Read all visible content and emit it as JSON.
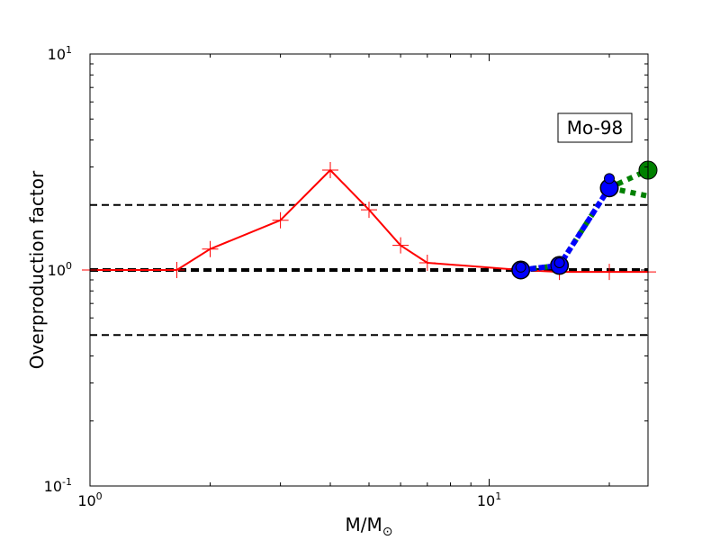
{
  "chart_data": {
    "type": "line",
    "title": "",
    "xlabel": "M/M",
    "xlabel_sub": "⊙",
    "ylabel": "Overproduction factor",
    "xscale": "log",
    "yscale": "log",
    "xlim": [
      1,
      25
    ],
    "ylim": [
      0.1,
      10
    ],
    "x_ticks": [
      {
        "value": 1,
        "base": "10",
        "exp": "0"
      },
      {
        "value": 10,
        "base": "10",
        "exp": "1"
      }
    ],
    "y_ticks": [
      {
        "value": 0.1,
        "base": "10",
        "exp": "-1"
      },
      {
        "value": 1,
        "base": "10",
        "exp": "0"
      },
      {
        "value": 10,
        "base": "10",
        "exp": "1"
      }
    ],
    "grid": false,
    "legend": "none",
    "annotation": "Mo-98",
    "reference_lines": [
      {
        "y": 2.0,
        "style": "dashed",
        "color": "#000000",
        "width": 2
      },
      {
        "y": 1.0,
        "style": "dashed",
        "color": "#000000",
        "width": 4
      },
      {
        "y": 0.5,
        "style": "dashed",
        "color": "#000000",
        "width": 2
      }
    ],
    "series": [
      {
        "color": "#ff0000",
        "style": "solid",
        "marker": "plus",
        "points": [
          {
            "x": 1,
            "y": 1.0
          },
          {
            "x": 1.65,
            "y": 1.0
          },
          {
            "x": 2,
            "y": 1.25
          },
          {
            "x": 3,
            "y": 1.7
          },
          {
            "x": 4,
            "y": 2.9
          },
          {
            "x": 5,
            "y": 1.9
          },
          {
            "x": 6,
            "y": 1.3
          },
          {
            "x": 7,
            "y": 1.08
          },
          {
            "x": 12,
            "y": 1.0
          },
          {
            "x": 15,
            "y": 0.98
          },
          {
            "x": 20,
            "y": 0.98
          },
          {
            "x": 25,
            "y": 0.98
          }
        ]
      },
      {
        "color": "#008000",
        "style": "dotted",
        "marker": "circle",
        "points": [
          {
            "x": 12,
            "y": 1.0
          },
          {
            "x": 15,
            "y": 1.05
          },
          {
            "x": 20,
            "y": 2.4
          },
          {
            "x": 25,
            "y": 2.9
          }
        ]
      },
      {
        "color": "#008000",
        "style": "dotted",
        "marker": "none",
        "points": [
          {
            "x": 20,
            "y": 2.4
          },
          {
            "x": 25,
            "y": 2.2
          }
        ]
      },
      {
        "color": "#0000ff",
        "style": "dashed",
        "marker": "circle",
        "points": [
          {
            "x": 12,
            "y": 1.0
          },
          {
            "x": 15,
            "y": 1.05
          },
          {
            "x": 20,
            "y": 2.4
          }
        ]
      },
      {
        "color": "#0000ff",
        "style": "none",
        "marker": "circle",
        "points": [
          {
            "x": 12,
            "y": 1.03
          },
          {
            "x": 15,
            "y": 1.08
          },
          {
            "x": 20,
            "y": 2.65
          }
        ]
      }
    ]
  }
}
